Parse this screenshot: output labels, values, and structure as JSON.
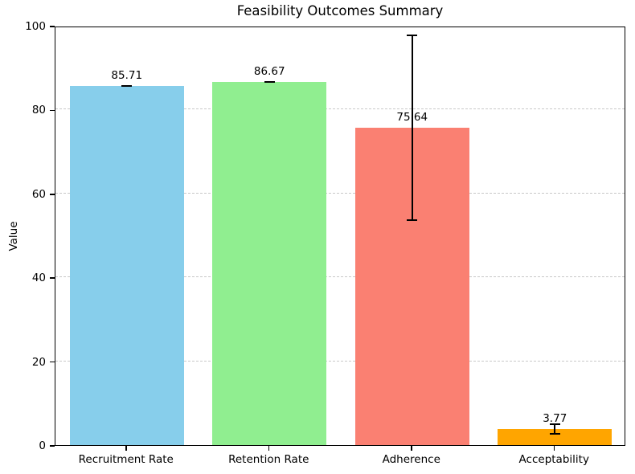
{
  "chart_data": {
    "type": "bar",
    "title": "Feasibility Outcomes Summary",
    "ylabel": "Value",
    "categories": [
      "Recruitment Rate",
      "Retention Rate",
      "Adherence",
      "Acceptability"
    ],
    "values": [
      85.71,
      86.67,
      75.64,
      3.77
    ],
    "errors": [
      0,
      0,
      22.0,
      1.15
    ],
    "bar_colors": [
      "#87ceeb",
      "#90ee90",
      "#fa8072",
      "#ffa500"
    ],
    "value_labels": [
      "85.71",
      "86.67",
      "75.64",
      "3.77"
    ],
    "ylim": [
      0,
      100
    ],
    "yticks": [
      0,
      20,
      40,
      60,
      80,
      100
    ],
    "grid": {
      "axis": "y",
      "style": "dashed",
      "color": "#c8c8c8"
    },
    "error_bar_color": "#000000",
    "bar_width_fraction": 0.8,
    "legend": false
  }
}
